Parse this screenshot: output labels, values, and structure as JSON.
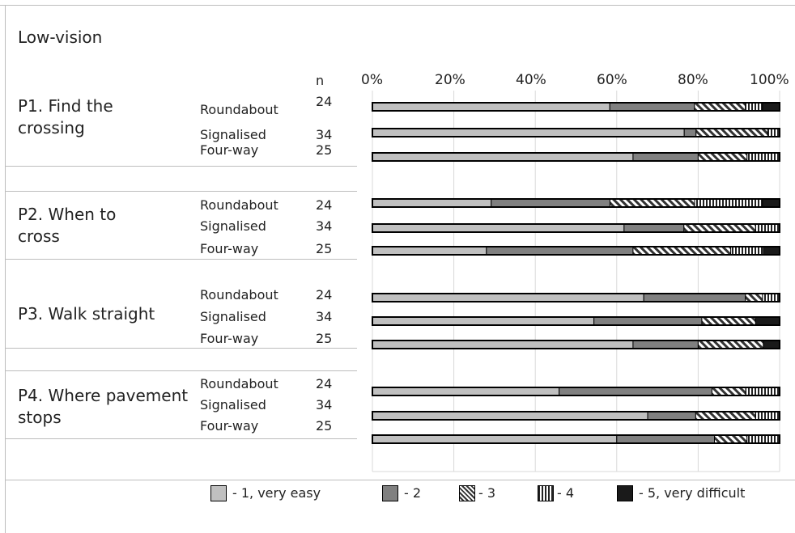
{
  "panel_title": "Low-vision",
  "n_header": "n",
  "chart_data": {
    "type": "bar",
    "stacked": true,
    "orientation": "horizontal",
    "x_ticks": [
      "0%",
      "20%",
      "40%",
      "60%",
      "80%",
      "100%"
    ],
    "xlim": [
      0,
      100
    ],
    "grid": true,
    "legend_position": "bottom",
    "groups": [
      {
        "label": "P1. Find the crossing",
        "rows": [
          {
            "category": "Roundabout",
            "n": "24",
            "values": [
              58.3,
              20.8,
              12.5,
              4.2,
              4.2
            ]
          },
          {
            "category": "Signalised",
            "n": "34",
            "values": [
              76.5,
              2.9,
              17.6,
              2.9,
              0
            ]
          },
          {
            "category": "Four-way",
            "n": "25",
            "values": [
              64,
              16,
              12,
              8,
              0
            ]
          }
        ]
      },
      {
        "label": "P2. When to cross",
        "rows": [
          {
            "category": "Roundabout",
            "n": "24",
            "values": [
              29.2,
              29.2,
              20.8,
              16.7,
              4.2
            ]
          },
          {
            "category": "Signalised",
            "n": "34",
            "values": [
              61.8,
              14.7,
              17.6,
              5.9,
              0
            ]
          },
          {
            "category": "Four-way",
            "n": "25",
            "values": [
              28,
              36,
              24,
              8,
              4
            ]
          }
        ]
      },
      {
        "label": "P3. Walk straight",
        "rows": [
          {
            "category": "Roundabout",
            "n": "24",
            "values": [
              66.7,
              25,
              4.2,
              4.2,
              0
            ]
          },
          {
            "category": "Signalised",
            "n": "34",
            "values": [
              54.4,
              26.5,
              13.2,
              0,
              5.9
            ]
          },
          {
            "category": "Four-way",
            "n": "25",
            "values": [
              64,
              16,
              16,
              0,
              4
            ]
          }
        ]
      },
      {
        "label": "P4. Where pavement stops",
        "rows": [
          {
            "category": "Roundabout",
            "n": "24",
            "values": [
              45.8,
              37.5,
              8.3,
              8.3,
              0
            ]
          },
          {
            "category": "Signalised",
            "n": "34",
            "values": [
              67.6,
              11.8,
              14.7,
              5.9,
              0
            ]
          },
          {
            "category": "Four-way",
            "n": "25",
            "values": [
              60,
              24,
              8,
              8,
              0
            ]
          }
        ]
      }
    ],
    "legend": [
      {
        "label": "- 1, very easy",
        "color": "#c0c0c0",
        "pattern": "solid"
      },
      {
        "label": "- 2",
        "color": "#808080",
        "pattern": "solid"
      },
      {
        "label": "- 3",
        "color": "#ffffff",
        "pattern": "diagonal"
      },
      {
        "label": "- 4",
        "color": "#ffffff",
        "pattern": "vertical"
      },
      {
        "label": "- 5, very difficult",
        "color": "#1a1a1a",
        "pattern": "solid"
      }
    ]
  }
}
